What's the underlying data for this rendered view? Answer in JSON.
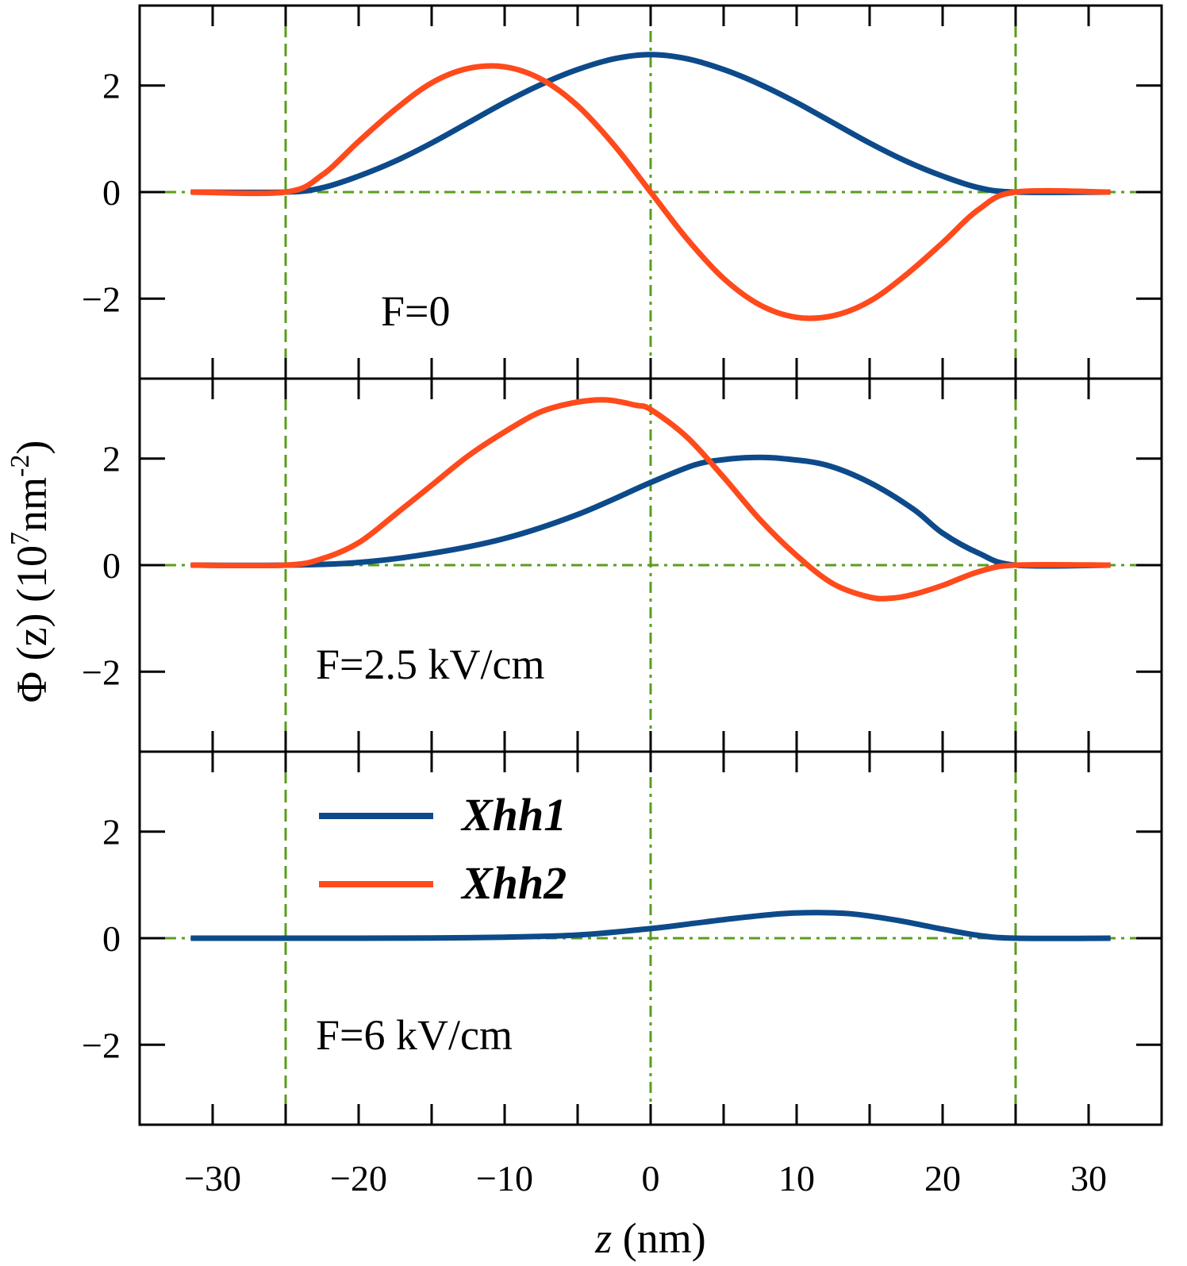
{
  "chart_data": {
    "type": "line",
    "ylabel": "Φ (z) (10",
    "ylabel_exp": "7",
    "ylabel_unit": "nm",
    "ylabel_unit_exp": "-2",
    "ylabel_close": ")",
    "xlabel_var": "z",
    "xlabel_unit": " (nm)",
    "xlim": [
      -35,
      35
    ],
    "ylim": [
      -3.5,
      3.5
    ],
    "x_ticks": [
      -30,
      -20,
      -10,
      0,
      10,
      20,
      30
    ],
    "x_tick_labels": [
      "−30",
      "−20",
      "−10",
      "0",
      "10",
      "20",
      "30"
    ],
    "y_ticks": [
      -2,
      0,
      2
    ],
    "y_tick_labels": [
      "−2",
      "0",
      "2"
    ],
    "colors": {
      "Xhh1": "#0d4a8a",
      "Xhh2": "#ff4a1c",
      "guides": "#5a9e1e"
    },
    "legend": {
      "placement": "panel-3 upper-left",
      "entries": [
        "Xhh1",
        "Xhh2"
      ]
    },
    "guide_lines": {
      "z": [
        -25,
        0,
        25
      ],
      "y": 0
    },
    "panels": [
      {
        "label": "F=0",
        "series": [
          {
            "name": "Xhh1",
            "x": [
              -31.5,
              -25,
              -22.5,
              -20,
              -17.5,
              -15,
              -12.5,
              -10,
              -7.5,
              -5,
              -2.5,
              0,
              2.5,
              5,
              7.5,
              10,
              12.5,
              15,
              17.5,
              20,
              22.5,
              25,
              31.5
            ],
            "y": [
              0,
              0,
              0.08,
              0.3,
              0.58,
              0.92,
              1.3,
              1.68,
              2.02,
              2.3,
              2.5,
              2.58,
              2.5,
              2.3,
              2.02,
              1.68,
              1.3,
              0.92,
              0.58,
              0.3,
              0.08,
              0,
              0
            ]
          },
          {
            "name": "Xhh2",
            "x": [
              -31.5,
              -25,
              -22.5,
              -20,
              -17.5,
              -15,
              -12.5,
              -10,
              -7.5,
              -5,
              -2.5,
              0,
              2.5,
              5,
              7.5,
              10,
              12.5,
              15,
              17.5,
              20,
              22.5,
              25,
              31.5
            ],
            "y": [
              0,
              0,
              0.32,
              0.95,
              1.55,
              2.05,
              2.32,
              2.35,
              2.12,
              1.62,
              0.88,
              0,
              -0.88,
              -1.62,
              -2.12,
              -2.35,
              -2.32,
              -2.05,
              -1.55,
              -0.95,
              -0.32,
              0,
              0
            ]
          }
        ]
      },
      {
        "label": "F=2.5 kV/cm",
        "series": [
          {
            "name": "Xhh1",
            "x": [
              -31.5,
              -25,
              -20,
              -15,
              -10,
              -5,
              0,
              3,
              5,
              7,
              9,
              12,
              15,
              18,
              20,
              22.5,
              25,
              31.5
            ],
            "y": [
              0,
              0,
              0.05,
              0.22,
              0.5,
              0.95,
              1.55,
              1.88,
              1.98,
              2.02,
              2.0,
              1.88,
              1.55,
              1.05,
              0.6,
              0.22,
              0,
              0
            ]
          },
          {
            "name": "Xhh2",
            "x": [
              -31.5,
              -25,
              -22.5,
              -20,
              -17.5,
              -15,
              -12.5,
              -10,
              -7.5,
              -5,
              -3,
              -1,
              0,
              2.5,
              5,
              7.5,
              10,
              12.5,
              15,
              16.5,
              18,
              20,
              22.5,
              25,
              31.5
            ],
            "y": [
              0,
              0,
              0.12,
              0.42,
              0.95,
              1.5,
              2.05,
              2.5,
              2.88,
              3.06,
              3.1,
              3.0,
              2.92,
              2.4,
              1.65,
              0.85,
              0.18,
              -0.35,
              -0.6,
              -0.62,
              -0.55,
              -0.38,
              -0.12,
              0,
              0
            ]
          }
        ]
      },
      {
        "label": "F=6 kV/cm",
        "series": [
          {
            "name": "Xhh1",
            "x": [
              -31.5,
              -25,
              -20,
              -15,
              -10,
              -5,
              0,
              3,
              6,
              9,
              11.5,
              14,
              17,
              20,
              22.5,
              25,
              31.5
            ],
            "y": [
              0,
              0,
              0,
              0.005,
              0.02,
              0.06,
              0.18,
              0.28,
              0.38,
              0.46,
              0.48,
              0.45,
              0.33,
              0.17,
              0.05,
              0,
              0
            ]
          }
        ]
      }
    ]
  }
}
